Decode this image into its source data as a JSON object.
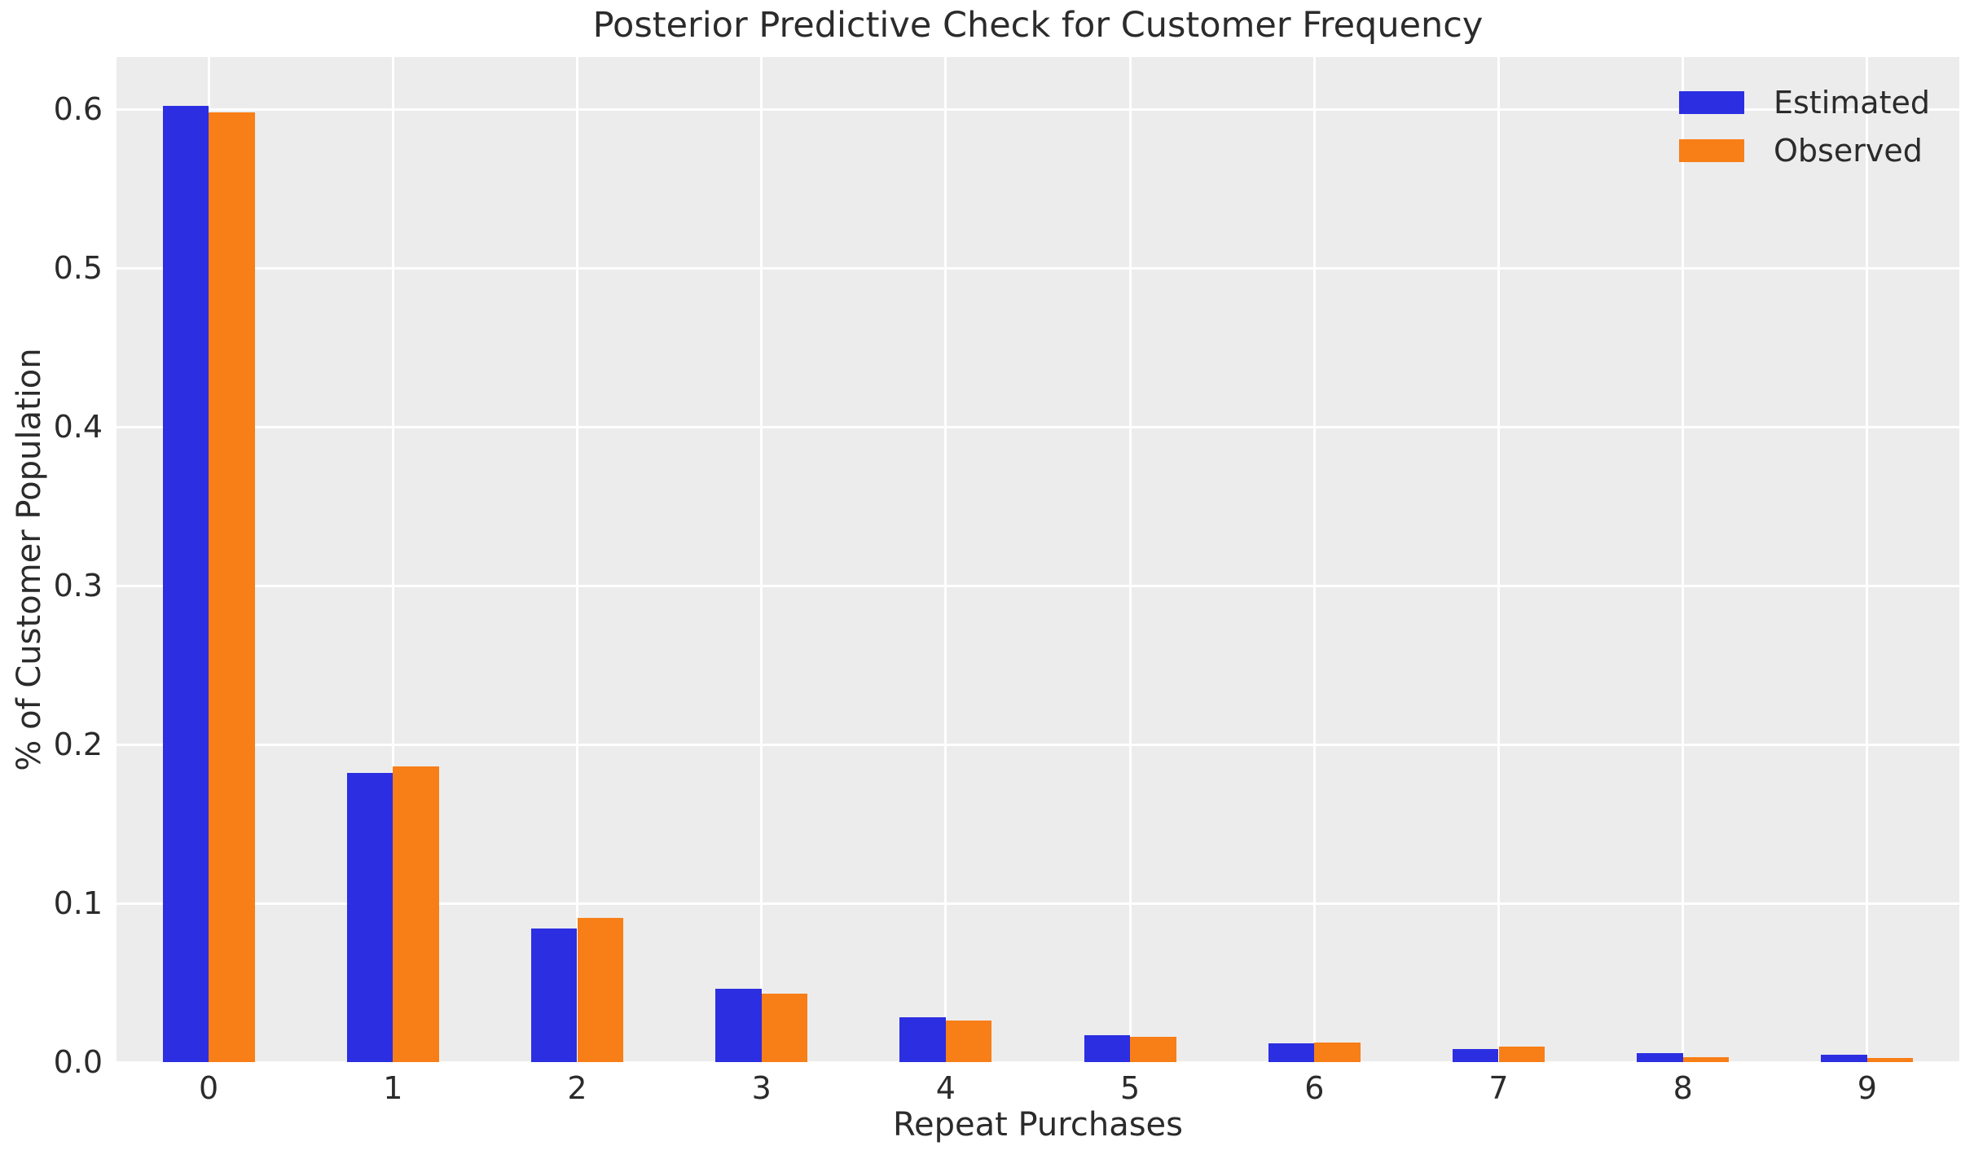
{
  "chart_data": {
    "type": "bar",
    "title": "Posterior Predictive Check for Customer Frequency",
    "xlabel": "Repeat Purchases",
    "ylabel": "% of Customer Population",
    "categories": [
      "0",
      "1",
      "2",
      "3",
      "4",
      "5",
      "6",
      "7",
      "8",
      "9"
    ],
    "series": [
      {
        "name": "Estimated",
        "color": "#2c2ee2",
        "values": [
          0.602,
          0.182,
          0.084,
          0.046,
          0.028,
          0.017,
          0.012,
          0.008,
          0.0055,
          0.0045
        ]
      },
      {
        "name": "Observed",
        "color": "#f87e17",
        "values": [
          0.598,
          0.186,
          0.091,
          0.043,
          0.026,
          0.016,
          0.0125,
          0.01,
          0.003,
          0.0025
        ]
      }
    ],
    "ylim": [
      0,
      0.633
    ],
    "yticks": [
      "0.0",
      "0.1",
      "0.2",
      "0.3",
      "0.4",
      "0.5",
      "0.6"
    ],
    "ytick_values": [
      0.0,
      0.1,
      0.2,
      0.3,
      0.4,
      0.5,
      0.6
    ],
    "grid": true,
    "legend_position": "upper right",
    "axes_background": "#ececec",
    "grid_color": "#ffffff",
    "text_color": "#2b2b2b"
  }
}
